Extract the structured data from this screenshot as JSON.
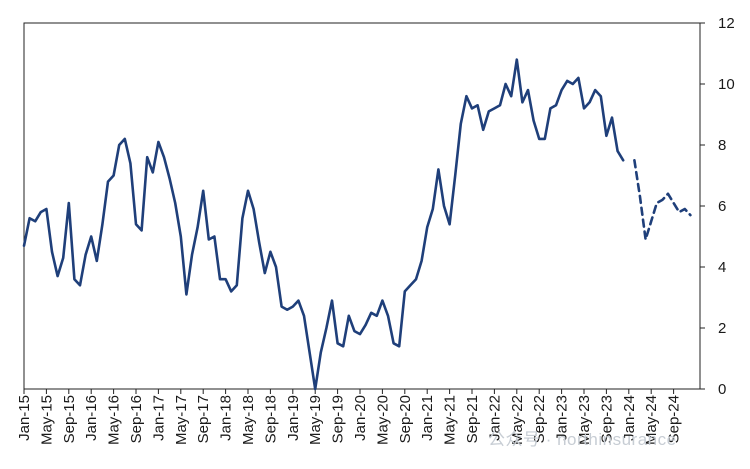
{
  "chart_data": {
    "type": "line",
    "title": "",
    "xlabel": "",
    "ylabel": "",
    "ylim": [
      0,
      12
    ],
    "y_axis_side": "right",
    "y_ticks": [
      "0",
      "2",
      "4",
      "6",
      "8",
      "10",
      "12"
    ],
    "x_tick_labels": [
      "Jan-15",
      "May-15",
      "Sep-15",
      "Jan-16",
      "May-16",
      "Sep-16",
      "Jan-17",
      "May-17",
      "Sep-17",
      "Jan-18",
      "May-18",
      "Sep-18",
      "Jan-19",
      "May-19",
      "Sep-19",
      "Jan-20",
      "May-20",
      "Sep-20",
      "Jan-21",
      "May-21",
      "Sep-21",
      "Jan-22",
      "May-22",
      "Sep-22",
      "Jan-23",
      "May-23",
      "Sep-23",
      "Jan-24",
      "May-24",
      "Sep-24"
    ],
    "grid": false,
    "legend": "none",
    "line_color": "#1f3f7a",
    "series": [
      {
        "style": "solid",
        "start": "Jan-15",
        "values": [
          4.7,
          5.6,
          5.5,
          5.8,
          5.9,
          4.5,
          3.7,
          4.3,
          6.1,
          3.6,
          3.4,
          4.4,
          5.0,
          4.2,
          5.4,
          6.8,
          7.0,
          8.0,
          8.2,
          7.4,
          5.4,
          5.2,
          7.6,
          7.1,
          8.1,
          7.6,
          6.9,
          6.1,
          5.0,
          3.1,
          4.4,
          5.3,
          6.5,
          4.9,
          5.0,
          3.6,
          3.6,
          3.2,
          3.4,
          5.6,
          6.5,
          5.9,
          4.8,
          3.8,
          4.5,
          4.0,
          2.7,
          2.6,
          2.7,
          2.9,
          2.4,
          1.2,
          0.0,
          1.2,
          2.0,
          2.9,
          1.5,
          1.4,
          2.4,
          1.9,
          1.8,
          2.1,
          2.5,
          2.4,
          2.9,
          2.4,
          1.5,
          1.4,
          3.2,
          3.4,
          3.6,
          4.2,
          5.3,
          5.9,
          7.2,
          6.0,
          5.4,
          7.0,
          8.7,
          9.6,
          9.2,
          9.3,
          8.5,
          9.1,
          9.2,
          9.3,
          10.0,
          9.6,
          10.8,
          9.4,
          9.8,
          8.8,
          8.2,
          8.2,
          9.2,
          9.3,
          9.8,
          10.1,
          10.0,
          10.2,
          9.2,
          9.4,
          9.8,
          9.6,
          8.3,
          8.9,
          7.8,
          7.5
        ]
      },
      {
        "style": "dashed",
        "start": "Feb-24",
        "values": [
          7.5,
          6.3,
          4.9,
          5.5,
          6.1,
          6.2,
          6.4,
          6.1,
          5.8,
          5.9,
          5.7
        ]
      }
    ]
  },
  "watermark": "公众号 · northinsurance"
}
